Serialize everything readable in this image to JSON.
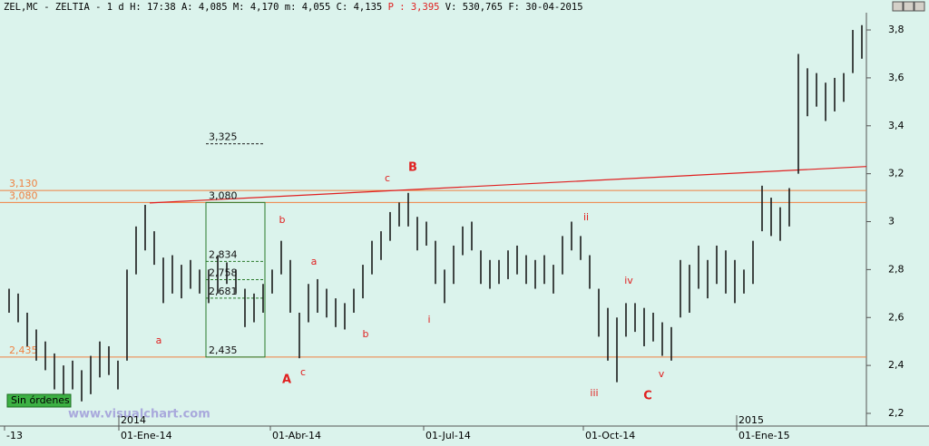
{
  "chart_data": {
    "type": "ohlc",
    "header": [
      "ZEL,MC - ZELTIA -  1 d H: 17:38 A: 4,085 M: 4,170 m: 4,055 C: 4,135",
      "P : 3,395",
      "V: 530,765 F: 30-04-2015"
    ],
    "categories": [
      null,
      null,
      null,
      null,
      null,
      null,
      null,
      null,
      null,
      null,
      null,
      null,
      null,
      null,
      null,
      null,
      null,
      null,
      null,
      null,
      null,
      null,
      null,
      null,
      null,
      null,
      null,
      null,
      null,
      null,
      null,
      null,
      null,
      null,
      null,
      null,
      null,
      null,
      null,
      null,
      null,
      null,
      null,
      null,
      null,
      null,
      null,
      null,
      null,
      null,
      null,
      null,
      null,
      null,
      null,
      null,
      null,
      null,
      null,
      null,
      null,
      null,
      null,
      null,
      null,
      null,
      null,
      null,
      null,
      null,
      null,
      null,
      null,
      null,
      null,
      null,
      null,
      null,
      null,
      null,
      null,
      null,
      null,
      null,
      null,
      null,
      null,
      null,
      null,
      null,
      null,
      null,
      null,
      null,
      null
    ],
    "high": [
      2.72,
      2.7,
      2.62,
      2.55,
      2.5,
      2.45,
      2.4,
      2.42,
      2.38,
      2.44,
      2.5,
      2.48,
      2.42,
      2.8,
      2.98,
      3.07,
      2.96,
      2.85,
      2.86,
      2.82,
      2.84,
      2.8,
      2.8,
      2.86,
      2.83,
      2.8,
      2.72,
      2.7,
      2.74,
      2.8,
      2.92,
      2.84,
      2.62,
      2.74,
      2.76,
      2.72,
      2.68,
      2.66,
      2.72,
      2.82,
      2.92,
      2.96,
      3.04,
      3.08,
      3.12,
      3.02,
      3.0,
      2.92,
      2.8,
      2.9,
      2.98,
      3.0,
      2.88,
      2.84,
      2.84,
      2.88,
      2.9,
      2.86,
      2.84,
      2.86,
      2.82,
      2.94,
      3.0,
      2.94,
      2.86,
      2.72,
      2.64,
      2.6,
      2.66,
      2.66,
      2.64,
      2.62,
      2.58,
      2.56,
      2.84,
      2.82,
      2.9,
      2.84,
      2.9,
      2.88,
      2.84,
      2.8,
      2.92,
      3.15,
      3.1,
      3.06,
      3.14,
      3.7,
      3.64,
      3.62,
      3.58,
      3.6,
      3.62,
      3.8,
      3.82
    ],
    "low": [
      2.62,
      2.58,
      2.48,
      2.42,
      2.38,
      2.3,
      2.28,
      2.3,
      2.25,
      2.28,
      2.35,
      2.36,
      2.3,
      2.42,
      2.78,
      2.88,
      2.82,
      2.66,
      2.7,
      2.68,
      2.72,
      2.7,
      2.66,
      2.7,
      2.74,
      2.7,
      2.56,
      2.58,
      2.62,
      2.7,
      2.78,
      2.62,
      2.43,
      2.58,
      2.62,
      2.6,
      2.56,
      2.55,
      2.62,
      2.68,
      2.78,
      2.84,
      2.92,
      2.98,
      2.98,
      2.88,
      2.9,
      2.74,
      2.66,
      2.74,
      2.86,
      2.88,
      2.74,
      2.72,
      2.74,
      2.76,
      2.78,
      2.74,
      2.72,
      2.74,
      2.7,
      2.78,
      2.88,
      2.84,
      2.72,
      2.52,
      2.42,
      2.33,
      2.52,
      2.54,
      2.48,
      2.5,
      2.44,
      2.42,
      2.6,
      2.62,
      2.72,
      2.68,
      2.74,
      2.7,
      2.66,
      2.7,
      2.74,
      2.96,
      2.94,
      2.92,
      2.98,
      3.2,
      3.44,
      3.48,
      3.42,
      3.46,
      3.5,
      3.62,
      3.68
    ],
    "color": "#1a1a1a",
    "ylim": [
      2.147,
      3.872
    ],
    "yticks": [
      {
        "value": 2.2,
        "label": "2,2"
      },
      {
        "value": 2.4,
        "label": "2,4"
      },
      {
        "value": 2.6,
        "label": "2,6"
      },
      {
        "value": 2.8,
        "label": "2,8"
      },
      3,
      {
        "value": 3.2,
        "label": "3,2"
      },
      {
        "value": 3.4,
        "label": "3,4"
      },
      {
        "value": 3.6,
        "label": "3,6"
      },
      {
        "value": 3.8,
        "label": "3,8"
      }
    ],
    "xticks": [
      {
        "value": -0.5,
        "label": "-13"
      },
      {
        "value": 12.1,
        "label": "01-Ene-14"
      },
      {
        "value": 28.8,
        "label": "01-Abr-14"
      },
      {
        "value": 45.7,
        "label": "01-Jul-14"
      },
      {
        "value": 63.3,
        "label": "01-Oct-14"
      },
      {
        "value": 80.2,
        "label": "01-Ene-15"
      }
    ],
    "year_marks": [
      {
        "value": 12.1,
        "label": "2014"
      },
      {
        "value": 80.2,
        "label": "2015"
      }
    ],
    "hlines": [
      {
        "value": 3.13,
        "label": "3,130"
      },
      {
        "value": 3.08,
        "label": "3,080"
      },
      {
        "value": 2.435,
        "label": "2,435"
      }
    ],
    "hline_color": "#f08040",
    "trendline": {
      "x": [
        15.5,
        94.5
      ],
      "y": [
        3.078,
        3.23
      ],
      "color": "#e02020"
    },
    "fib": {
      "x": [
        21.7,
        28.2
      ],
      "color": "#2a7a2a",
      "levels": [
        {
          "value": 3.325,
          "label": "3,325"
        },
        {
          "value": 3.08,
          "label": "3,080"
        },
        {
          "value": 2.834,
          "label": "2,834"
        },
        {
          "value": 2.758,
          "label": "2,758"
        },
        {
          "value": 2.681,
          "label": "2,681"
        },
        {
          "value": 2.435,
          "label": "2,435"
        }
      ]
    },
    "annotations": [
      "a",
      "b",
      "a",
      "b",
      "c",
      "A",
      "c",
      "B",
      "i",
      "ii",
      "iii",
      "iv",
      "v",
      "C"
    ],
    "status": "Sin órdenes",
    "watermark": "www.visualchart.com"
  }
}
